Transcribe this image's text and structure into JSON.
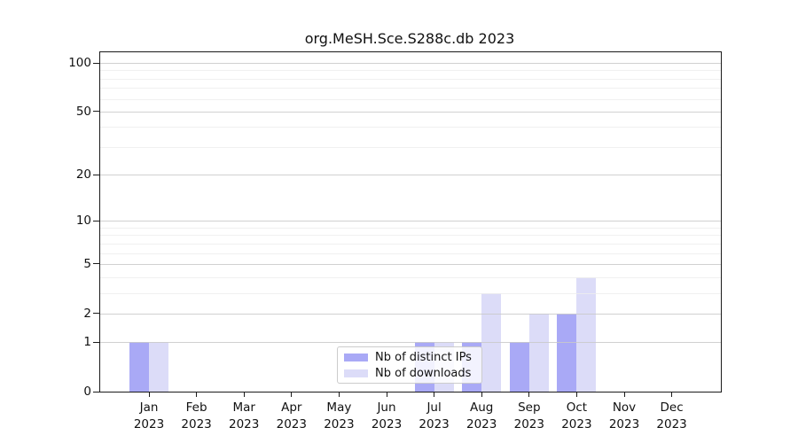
{
  "figure": {
    "title": "org.MeSH.Sce.S288c.db 2023"
  },
  "chart_data": {
    "type": "bar",
    "title": "org.MeSH.Sce.S288c.db 2023",
    "categories": [
      "Jan",
      "Feb",
      "Mar",
      "Apr",
      "May",
      "Jun",
      "Jul",
      "Aug",
      "Sep",
      "Oct",
      "Nov",
      "Dec"
    ],
    "year": "2023",
    "series": [
      {
        "name": "Nb of distinct IPs",
        "color": "#a9a9f6",
        "values": [
          1,
          0,
          0,
          0,
          0,
          0,
          1,
          1,
          1,
          2,
          0,
          0
        ]
      },
      {
        "name": "Nb of downloads",
        "color": "#dcdcf8",
        "values": [
          1,
          0,
          0,
          0,
          0,
          0,
          1,
          3,
          2,
          4,
          0,
          0
        ]
      }
    ],
    "y_scale": "log1p",
    "ylim": [
      0,
      100
    ],
    "y_major_ticks": [
      0,
      1,
      2,
      5,
      10,
      20,
      50,
      100
    ],
    "y_minor_gridlines": [
      3,
      4,
      6,
      7,
      8,
      9,
      30,
      40,
      60,
      70,
      80,
      90
    ],
    "grid": true,
    "legend_position": "lower center"
  },
  "colors": {
    "axis": "#1a1a1a",
    "grid_major": "#c9c9c9",
    "grid_minor": "#ededed",
    "legend_border": "#cccccc"
  }
}
